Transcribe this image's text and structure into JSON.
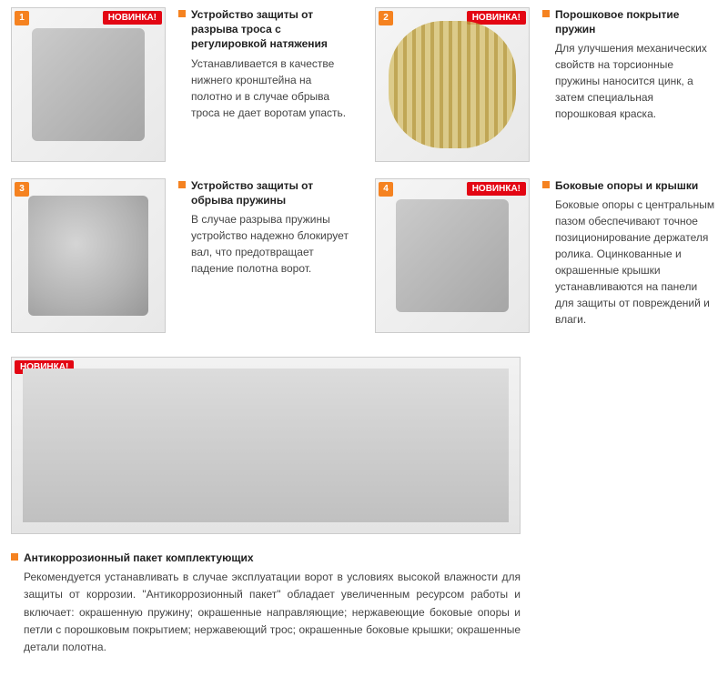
{
  "colors": {
    "accent": "#f58220",
    "badge_new_bg": "#e30613",
    "badge_new_text": "НОВИНКА!",
    "text": "#333333",
    "border": "#cccccc"
  },
  "features": [
    {
      "num": "1",
      "new": true,
      "title": "Устройство защиты от разрыва троса с регулировкой натяжения",
      "desc": "Устанавливается в качестве нижнего кронштейна на полотно и в случае обрыва троса не дает воротам упасть."
    },
    {
      "num": "2",
      "new": true,
      "title": "Порошковое покрытие пружин",
      "desc": "Для улучшения механических свойств на торсионные пружины наносится цинк, а затем специальная порошковая краска."
    },
    {
      "num": "3",
      "new": false,
      "title": "Устройство защиты от обрыва пружины",
      "desc": "В случае разрыва пружины устройство надежно блокирует вал, что предотвращает падение полотна ворот."
    },
    {
      "num": "4",
      "new": true,
      "title": "Боковые опоры и крышки",
      "desc": "Боковые опоры с центральным пазом обеспечивают точное позиционирование держателя ролика. Оцинкованные и окрашенные крышки устанавливаются на панели для защиты от повреждений и влаги."
    }
  ],
  "full": {
    "new": true,
    "title": "Антикоррозионный пакет комплектующих",
    "desc": "Рекомендуется устанавливать в случае эксплуатации ворот в условиях высокой влажности для защиты от коррозии. \"Антикоррозионный пакет\" обладает увеличенным ресурсом работы и включает: окрашенную пружину; окрашенные направляющие; нержавеющие боковые опоры и петли с порошковым покрытием; нержавеющий трос; окрашенные боковые крышки; окрашенные детали полотна."
  }
}
